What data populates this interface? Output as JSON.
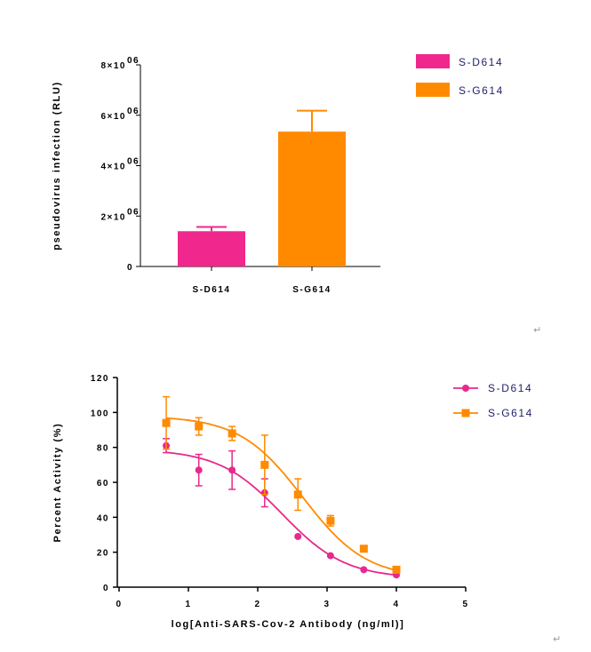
{
  "chart_data": [
    {
      "type": "bar",
      "categories": [
        "S-D614",
        "S-G614"
      ],
      "values": [
        1400000,
        5350000
      ],
      "errors": [
        170000,
        830000
      ],
      "ylabel": "pseudovirus infection (RLU)",
      "ylim": [
        0,
        8000000
      ],
      "ytick_labels": [
        "0",
        "2×10",
        "4×10",
        "6×10",
        "8×10"
      ],
      "ytick_exp": "06",
      "colors": [
        "#f0278c",
        "#ff8a00"
      ],
      "legend": [
        {
          "name": "S-D614",
          "color": "#f0278c"
        },
        {
          "name": "S-G614",
          "color": "#ff8a00"
        }
      ],
      "legend_position": "top-right"
    },
    {
      "type": "scatter",
      "xlabel": "log[Anti-SARS-Cov-2 Antibody (ng/ml)]",
      "ylabel": "Percent Activity (%)",
      "xlim": [
        0,
        5
      ],
      "ylim": [
        0,
        120
      ],
      "xticks": [
        "0",
        "1",
        "2",
        "3",
        "4",
        "5"
      ],
      "yticks": [
        "0",
        "20",
        "40",
        "60",
        "80",
        "100",
        "120"
      ],
      "legend_position": "top-right",
      "series": [
        {
          "name": "S-D614",
          "color": "#e8288c",
          "marker": "circle",
          "x": [
            0.68,
            1.15,
            1.63,
            2.1,
            2.58,
            3.05,
            3.53,
            4.0
          ],
          "y": [
            81,
            67,
            67,
            54,
            29,
            18,
            10,
            7
          ],
          "err": [
            4,
            9,
            11,
            8,
            1.5,
            1,
            1,
            1
          ],
          "fit": {
            "top": 79,
            "bottom": 5,
            "ic50": 2.35,
            "hill": 0.95
          }
        },
        {
          "name": "S-G614",
          "color": "#ff8a00",
          "marker": "square",
          "x": [
            0.68,
            1.15,
            1.63,
            2.1,
            2.58,
            3.05,
            3.53,
            4.0
          ],
          "y": [
            94,
            92,
            88,
            70,
            53,
            38,
            22,
            10
          ],
          "err": [
            15,
            5,
            4,
            17,
            9,
            3,
            1,
            1
          ],
          "fit": {
            "top": 98,
            "bottom": 5,
            "ic50": 2.65,
            "hill": 0.95
          }
        }
      ]
    }
  ],
  "marks": [
    "↵",
    "↵"
  ]
}
